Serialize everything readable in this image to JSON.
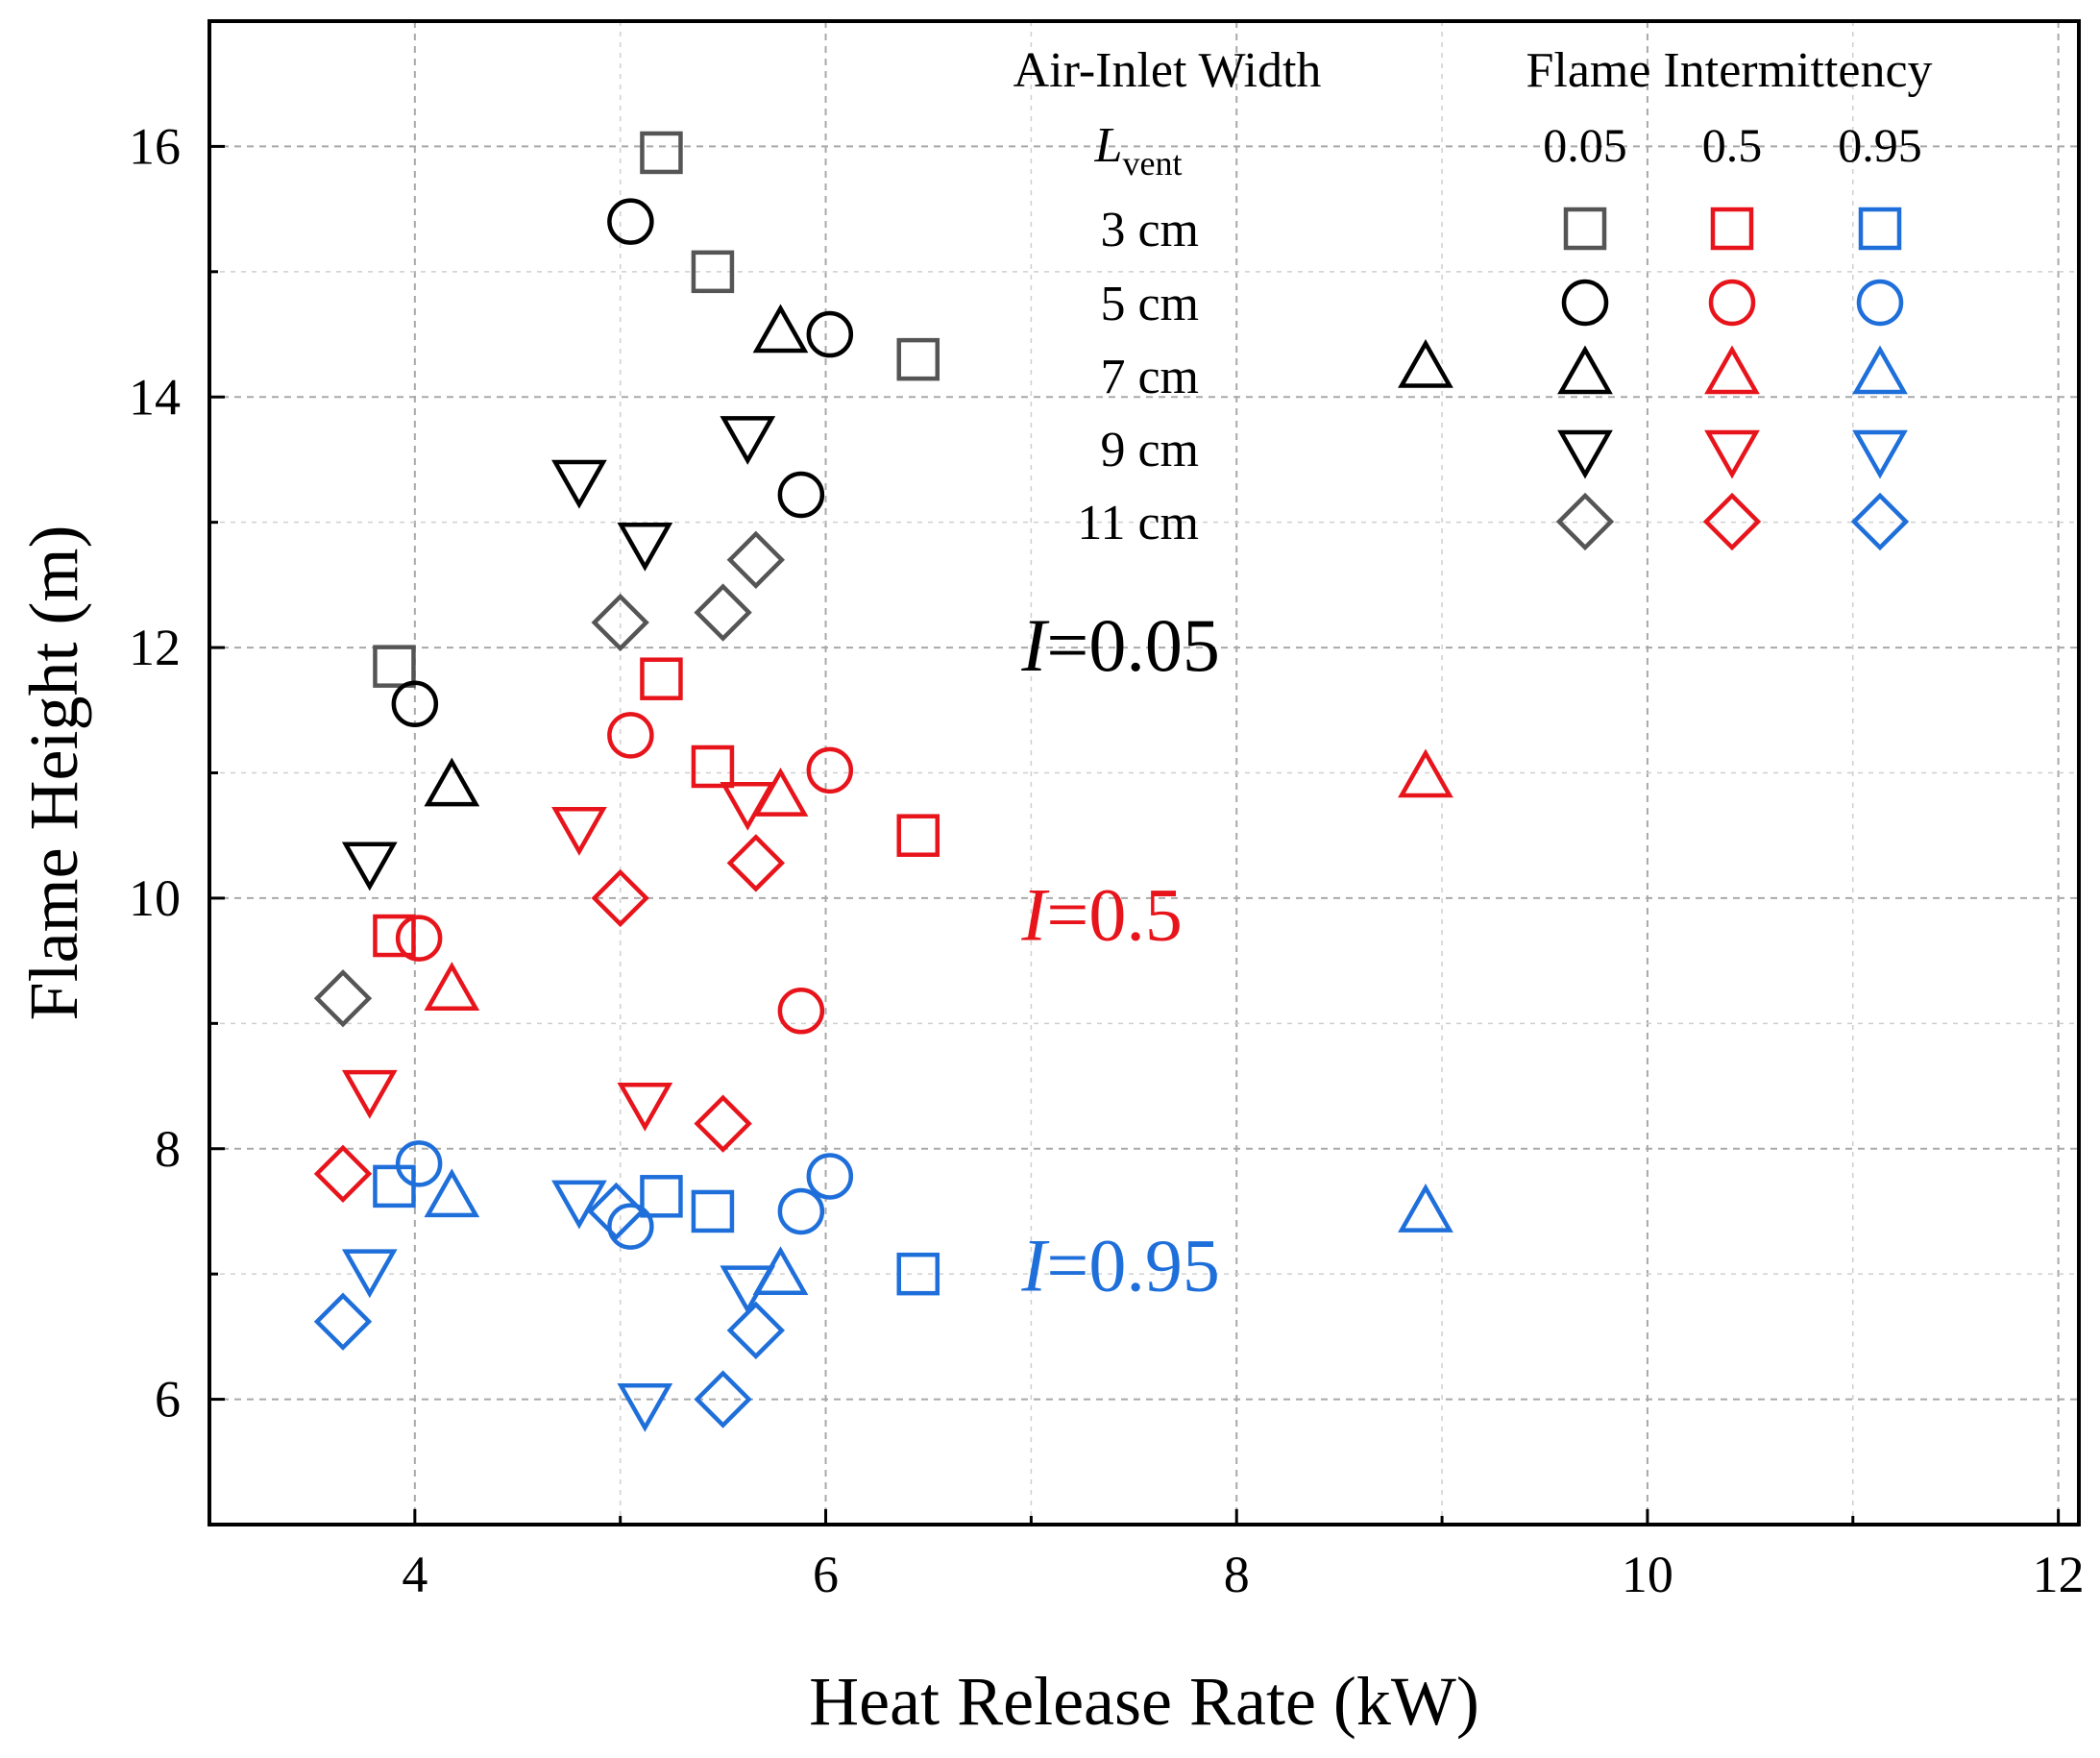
{
  "chart_data": {
    "type": "scatter",
    "title": "",
    "xlabel": "Heat Release Rate (kW)",
    "ylabel": "Flame Height (m)",
    "xlim": [
      3,
      12.1
    ],
    "ylim": [
      5,
      17
    ],
    "xticks": [
      4,
      6,
      8,
      10,
      12
    ],
    "yticks": [
      6,
      8,
      10,
      12,
      14,
      16
    ],
    "grid": true,
    "legend": {
      "placement": "top-right",
      "width_title": "Air-Inlet Width",
      "lvent_symbol": "L",
      "lvent_subscript": "vent",
      "intermittency_title": "Flame Intermittency",
      "intermittency_levels": [
        "0.05",
        "0.5",
        "0.95"
      ],
      "widths": [
        "3 cm",
        "5 cm",
        "7 cm",
        "9 cm",
        "11 cm"
      ]
    },
    "colors": {
      "I005": "#000000",
      "I005_light": "#555555",
      "I05": "#e8141b",
      "I095": "#1f6fdb"
    },
    "annotations": [
      {
        "symbol": "I",
        "text": "=0.05",
        "x": 7.0,
        "y": 12.0,
        "color": "#000000"
      },
      {
        "symbol": "I",
        "text": "=0.5",
        "x": 7.0,
        "y": 9.85,
        "color": "#e8141b"
      },
      {
        "symbol": "I",
        "text": "=0.95",
        "x": 7.0,
        "y": 7.05,
        "color": "#1f6fdb"
      }
    ],
    "series": [
      {
        "name": "3 cm, I=0.05",
        "marker": "square",
        "color": "#555555",
        "points": [
          [
            3.9,
            11.85
          ],
          [
            5.2,
            15.95
          ],
          [
            5.45,
            15.0
          ],
          [
            6.45,
            14.3
          ]
        ]
      },
      {
        "name": "5 cm, I=0.05",
        "marker": "circle",
        "color": "#000000",
        "points": [
          [
            4.0,
            11.55
          ],
          [
            5.05,
            15.4
          ],
          [
            6.02,
            14.5
          ],
          [
            5.88,
            13.22
          ]
        ]
      },
      {
        "name": "7 cm, I=0.05",
        "marker": "triangle-up",
        "color": "#000000",
        "points": [
          [
            4.18,
            10.88
          ],
          [
            5.78,
            14.5
          ],
          [
            8.92,
            14.22
          ]
        ]
      },
      {
        "name": "9 cm, I=0.05",
        "marker": "triangle-down",
        "color": "#000000",
        "points": [
          [
            3.78,
            10.3
          ],
          [
            4.8,
            13.35
          ],
          [
            5.12,
            12.85
          ],
          [
            5.62,
            13.7
          ]
        ]
      },
      {
        "name": "11 cm, I=0.05",
        "marker": "diamond",
        "color": "#555555",
        "points": [
          [
            3.65,
            9.2
          ],
          [
            5.0,
            12.2
          ],
          [
            5.5,
            12.28
          ],
          [
            5.66,
            12.7
          ]
        ]
      },
      {
        "name": "3 cm, I=0.5",
        "marker": "square",
        "color": "#e8141b",
        "points": [
          [
            3.9,
            9.7
          ],
          [
            5.2,
            11.75
          ],
          [
            5.45,
            11.05
          ],
          [
            6.45,
            10.5
          ]
        ]
      },
      {
        "name": "5 cm, I=0.5",
        "marker": "circle",
        "color": "#e8141b",
        "points": [
          [
            4.02,
            9.68
          ],
          [
            5.05,
            11.3
          ],
          [
            6.02,
            11.02
          ],
          [
            5.88,
            9.1
          ]
        ]
      },
      {
        "name": "7 cm, I=0.5",
        "marker": "triangle-up",
        "color": "#e8141b",
        "points": [
          [
            4.18,
            9.25
          ],
          [
            5.78,
            10.8
          ],
          [
            8.92,
            10.95
          ]
        ]
      },
      {
        "name": "9 cm, I=0.5",
        "marker": "triangle-down",
        "color": "#e8141b",
        "points": [
          [
            3.78,
            8.48
          ],
          [
            4.8,
            10.58
          ],
          [
            5.12,
            8.38
          ],
          [
            5.62,
            10.78
          ]
        ]
      },
      {
        "name": "11 cm, I=0.5",
        "marker": "diamond",
        "color": "#e8141b",
        "points": [
          [
            3.65,
            7.8
          ],
          [
            5.0,
            10.0
          ],
          [
            5.5,
            8.2
          ],
          [
            5.66,
            10.28
          ]
        ]
      },
      {
        "name": "3 cm, I=0.95",
        "marker": "square",
        "color": "#1f6fdb",
        "points": [
          [
            3.9,
            7.7
          ],
          [
            5.2,
            7.62
          ],
          [
            5.45,
            7.5
          ],
          [
            6.45,
            7.0
          ]
        ]
      },
      {
        "name": "5 cm, I=0.95",
        "marker": "circle",
        "color": "#1f6fdb",
        "points": [
          [
            4.02,
            7.88
          ],
          [
            5.05,
            7.38
          ],
          [
            6.02,
            7.78
          ],
          [
            5.88,
            7.5
          ]
        ]
      },
      {
        "name": "7 cm, I=0.95",
        "marker": "triangle-up",
        "color": "#1f6fdb",
        "points": [
          [
            4.18,
            7.6
          ],
          [
            5.78,
            6.98
          ],
          [
            8.92,
            7.48
          ]
        ]
      },
      {
        "name": "9 cm, I=0.95",
        "marker": "triangle-down",
        "color": "#1f6fdb",
        "points": [
          [
            3.78,
            7.05
          ],
          [
            4.8,
            7.6
          ],
          [
            5.12,
            5.98
          ],
          [
            5.62,
            6.92
          ]
        ]
      },
      {
        "name": "11 cm, I=0.95",
        "marker": "diamond",
        "color": "#1f6fdb",
        "points": [
          [
            3.65,
            6.62
          ],
          [
            4.98,
            7.5
          ],
          [
            5.5,
            6.0
          ],
          [
            5.66,
            6.55
          ]
        ]
      }
    ],
    "legend_markers": [
      {
        "row": 0,
        "marker": "square",
        "colors": [
          "#555555",
          "#e8141b",
          "#1f6fdb"
        ]
      },
      {
        "row": 1,
        "marker": "circle",
        "colors": [
          "#000000",
          "#e8141b",
          "#1f6fdb"
        ]
      },
      {
        "row": 2,
        "marker": "triangle-up",
        "colors": [
          "#000000",
          "#e8141b",
          "#1f6fdb"
        ]
      },
      {
        "row": 3,
        "marker": "triangle-down",
        "colors": [
          "#000000",
          "#e8141b",
          "#1f6fdb"
        ]
      },
      {
        "row": 4,
        "marker": "diamond",
        "colors": [
          "#555555",
          "#e8141b",
          "#1f6fdb"
        ]
      }
    ]
  }
}
